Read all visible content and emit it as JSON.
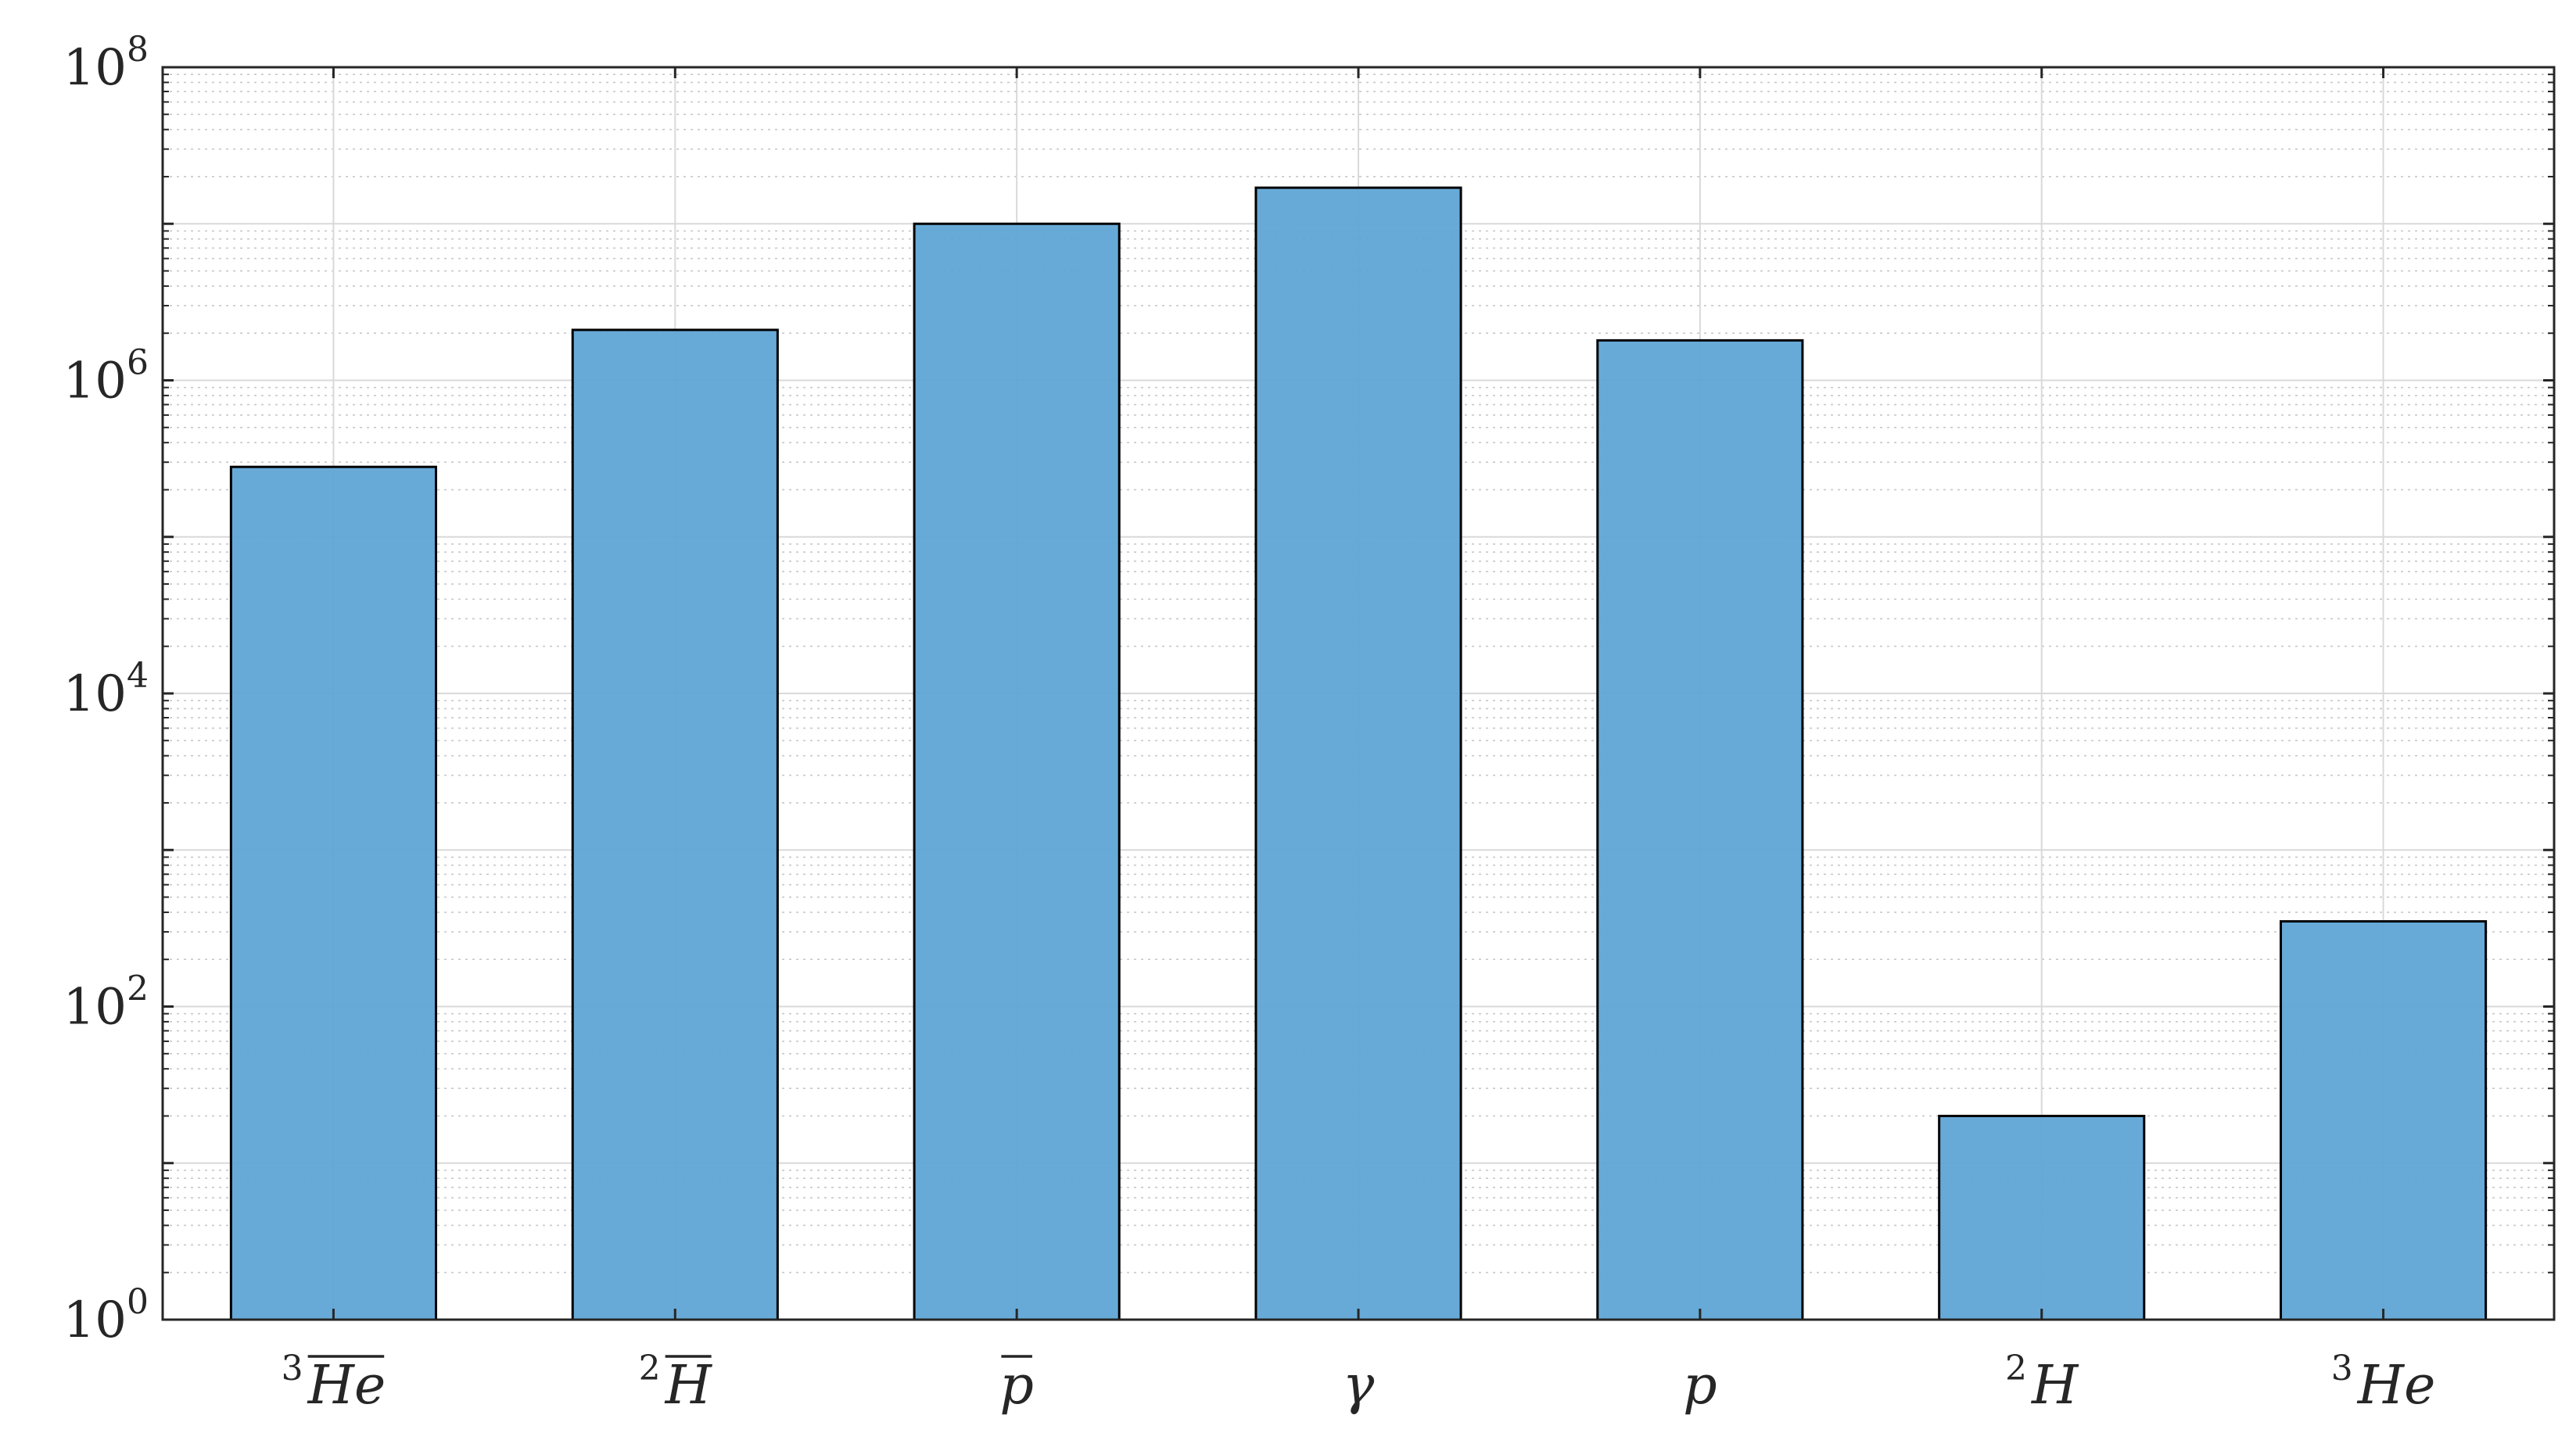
{
  "chart_data": {
    "type": "bar",
    "yscale": "log",
    "ylim": [
      1,
      100000000
    ],
    "grid": true,
    "minor_grid": true,
    "bar_color": "#5fa5d6",
    "bar_edge_color": "#000000",
    "categories": [
      {
        "sup": "3",
        "base": "He",
        "overline": true
      },
      {
        "sup": "2",
        "base": "H",
        "overline": true
      },
      {
        "sup": "",
        "base": "p",
        "overline": true
      },
      {
        "sup": "",
        "base": "γ",
        "overline": false
      },
      {
        "sup": "",
        "base": "p",
        "overline": false
      },
      {
        "sup": "2",
        "base": "H",
        "overline": false
      },
      {
        "sup": "3",
        "base": "He",
        "overline": false
      }
    ],
    "values": [
      280000,
      2100000,
      10000000,
      17000000,
      1800000,
      20,
      350
    ],
    "yticks": [
      {
        "base": "10",
        "exp": "0",
        "value": 1
      },
      {
        "base": "10",
        "exp": "2",
        "value": 100
      },
      {
        "base": "10",
        "exp": "4",
        "value": 10000
      },
      {
        "base": "10",
        "exp": "6",
        "value": 1000000
      },
      {
        "base": "10",
        "exp": "8",
        "value": 100000000
      }
    ]
  }
}
